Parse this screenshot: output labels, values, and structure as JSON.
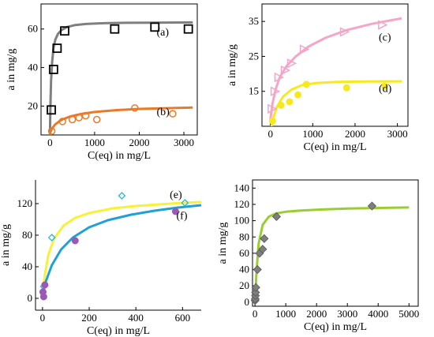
{
  "chart_data": [
    {
      "type": "scatter",
      "xlabel": "C(eq) in mg/L",
      "ylabel": "a in mg/g",
      "xlim": [
        -200,
        3300
      ],
      "ylim": [
        5,
        73
      ],
      "xticks": [
        0,
        1000,
        2000,
        3000
      ],
      "yticks": [
        20,
        40,
        60
      ],
      "series": [
        {
          "name": "(a)",
          "marker": "square",
          "color": "#000000",
          "fit_color": "#7f7f7f",
          "x": [
            30,
            80,
            160,
            330,
            1450,
            2350,
            3100
          ],
          "y": [
            18,
            39,
            50,
            59,
            60,
            61,
            60
          ],
          "fit_x": [
            0,
            10,
            25,
            50,
            80,
            120,
            180,
            260,
            380,
            550,
            800,
            1200,
            1700,
            2300,
            3200
          ],
          "fit_y": [
            5,
            20,
            33,
            43,
            50,
            54.5,
            57.5,
            59.5,
            61,
            62,
            62.6,
            63,
            63.2,
            63.3,
            63.4
          ]
        },
        {
          "name": "(b)",
          "marker": "circle-open",
          "color": "#e87a2a",
          "fit_color": "#e87a2a",
          "x": [
            40,
            280,
            500,
            650,
            800,
            1050,
            1900,
            2750
          ],
          "y": [
            7,
            12,
            13,
            14,
            15,
            13,
            19,
            16
          ],
          "fit_x": [
            0,
            50,
            120,
            250,
            450,
            700,
            1000,
            1500,
            2000,
            2600,
            3200
          ],
          "fit_y": [
            6,
            8.5,
            10.5,
            12.8,
            14.6,
            15.9,
            16.9,
            17.9,
            18.5,
            18.9,
            19.2
          ]
        }
      ]
    },
    {
      "type": "scatter",
      "xlabel": "C(eq) in mg/L",
      "ylabel": "a in mg/g",
      "xlim": [
        -200,
        3250
      ],
      "ylim": [
        5,
        40
      ],
      "xticks": [
        0,
        1000,
        2000,
        3000
      ],
      "yticks": [
        15,
        25,
        35
      ],
      "series": [
        {
          "name": "(c)",
          "marker": "triangle-open",
          "color": "#f4a6c8",
          "fit_color": "#f4a6c8",
          "x": [
            40,
            110,
            200,
            350,
            500,
            800,
            1750,
            2650
          ],
          "y": [
            10,
            15,
            19,
            21,
            23,
            27,
            32,
            34
          ],
          "fit_x": [
            0,
            50,
            120,
            220,
            380,
            600,
            900,
            1300,
            1800,
            2400,
            3100
          ],
          "fit_y": [
            7,
            11.5,
            15.5,
            19,
            22.2,
            25,
            27.8,
            30.3,
            32.5,
            34.3,
            35.9
          ]
        },
        {
          "name": "(d)",
          "marker": "circle-filled",
          "color": "#f6ea1f",
          "fit_color": "#f6ea1f",
          "x": [
            50,
            250,
            450,
            650,
            850,
            1800,
            2700
          ],
          "y": [
            6.5,
            11,
            12,
            14,
            17,
            16,
            16.5
          ],
          "fit_x": [
            0,
            60,
            150,
            300,
            500,
            750,
            1100,
            1600,
            2200,
            3100
          ],
          "fit_y": [
            3.5,
            7,
            10.5,
            13.5,
            15.5,
            16.8,
            17.4,
            17.7,
            17.8,
            17.85
          ]
        }
      ]
    },
    {
      "type": "scatter",
      "xlabel": "C(eq) in mg/L",
      "ylabel": "a in mg/g",
      "xlim": [
        -30,
        680
      ],
      "ylim": [
        -15,
        150
      ],
      "xticks": [
        0,
        200,
        400,
        600
      ],
      "yticks": [
        0,
        40,
        80,
        120
      ],
      "series": [
        {
          "name": "(e)",
          "marker": "diamond-open",
          "color": "#2ab7d9",
          "fit_color": "#f8f03a",
          "x": [
            5,
            40,
            340,
            610
          ],
          "y": [
            15,
            77,
            130,
            121
          ],
          "fit_x": [
            0,
            10,
            25,
            50,
            90,
            140,
            200,
            300,
            400,
            500,
            600,
            680
          ],
          "fit_y": [
            5,
            30,
            55,
            76,
            92,
            102,
            108,
            114,
            117,
            119,
            121,
            122
          ]
        },
        {
          "name": "(f)",
          "marker": "circle-filled",
          "color": "#9b59b6",
          "fit_color": "#1fa1d6",
          "x": [
            2,
            5,
            10,
            140,
            570
          ],
          "y": [
            8,
            2,
            17,
            73,
            110
          ],
          "fit_x": [
            0,
            15,
            40,
            80,
            130,
            200,
            280,
            380,
            480,
            580,
            680
          ],
          "fit_y": [
            5,
            22,
            42,
            62,
            77,
            90,
            99,
            106,
            111,
            115,
            118
          ]
        }
      ]
    },
    {
      "type": "scatter",
      "xlabel": "C(eq) in mg/L",
      "ylabel": "a in mg/g",
      "xlim": [
        -80,
        5300
      ],
      "ylim": [
        -5,
        150
      ],
      "xticks": [
        0,
        1000,
        2000,
        3000,
        4000,
        5000
      ],
      "yticks": [
        0,
        20,
        40,
        60,
        80,
        100,
        120,
        140
      ],
      "series": [
        {
          "marker": "diamond-filled",
          "color": "#7f7f7f",
          "fit_color": "#9acd32",
          "x": [
            5,
            10,
            15,
            20,
            30,
            80,
            150,
            250,
            300,
            700,
            3800
          ],
          "y": [
            2,
            4,
            8,
            12,
            18,
            40,
            60,
            65,
            78,
            105,
            118
          ],
          "fit_x": [
            0,
            50,
            120,
            250,
            450,
            700,
            1000,
            1500,
            2200,
            3000,
            4000,
            5000
          ],
          "fit_y": [
            0,
            38,
            72,
            95,
            105,
            109,
            111,
            112.5,
            113.8,
            114.8,
            115.6,
            116.2
          ]
        }
      ]
    }
  ]
}
